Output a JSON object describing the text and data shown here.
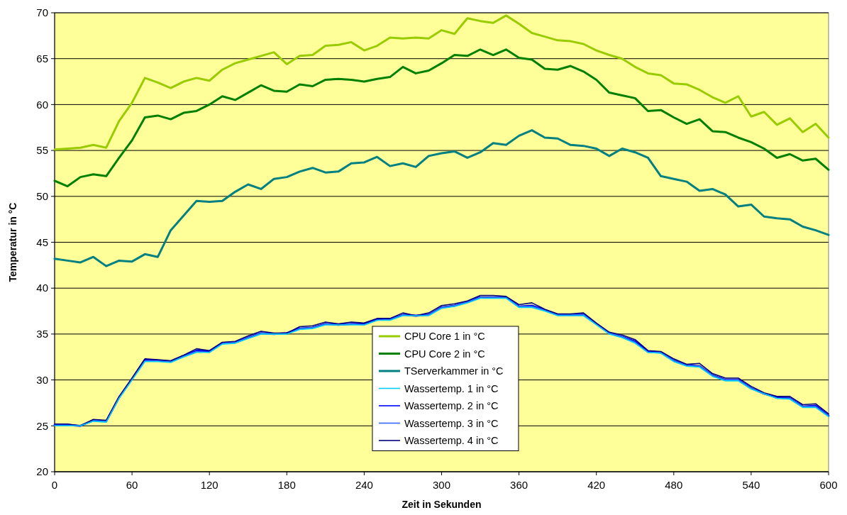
{
  "chart_data": {
    "type": "line",
    "xlabel": "Zeit in Sekunden",
    "ylabel": "Temperatur in °C",
    "x": [
      0,
      10,
      20,
      30,
      40,
      50,
      60,
      70,
      80,
      90,
      100,
      110,
      120,
      130,
      140,
      150,
      160,
      170,
      180,
      190,
      200,
      210,
      220,
      230,
      240,
      250,
      260,
      270,
      280,
      290,
      300,
      310,
      320,
      330,
      340,
      350,
      360,
      370,
      380,
      390,
      400,
      410,
      420,
      430,
      440,
      450,
      460,
      470,
      480,
      490,
      500,
      510,
      520,
      530,
      540,
      550,
      560,
      570,
      580,
      590,
      600
    ],
    "xlim": [
      0,
      600
    ],
    "xticks": [
      0,
      60,
      120,
      180,
      240,
      300,
      360,
      420,
      480,
      540,
      600
    ],
    "ylim": [
      20,
      70
    ],
    "yticks": [
      20,
      25,
      30,
      35,
      40,
      45,
      50,
      55,
      60,
      65,
      70
    ],
    "grid": "y",
    "legend": "bottom",
    "line_style": "solid",
    "marker": "none",
    "series": [
      {
        "name": "CPU Core 1 in °C",
        "color": "#99cc00",
        "values": [
          55.1,
          55.2,
          55.3,
          55.6,
          55.3,
          58.2,
          60.2,
          62.9,
          62.4,
          61.8,
          62.5,
          62.9,
          62.6,
          63.8,
          64.5,
          64.9,
          65.3,
          65.7,
          64.4,
          65.3,
          65.4,
          66.4,
          66.5,
          66.8,
          65.9,
          66.4,
          67.3,
          67.2,
          67.3,
          67.2,
          68.1,
          67.7,
          69.4,
          69.1,
          68.9,
          69.7,
          68.8,
          67.8,
          67.4,
          67.0,
          66.9,
          66.6,
          65.9,
          65.4,
          65.0,
          64.1,
          63.4,
          63.2,
          62.3,
          62.2,
          61.6,
          60.8,
          60.2,
          60.9,
          58.7,
          59.2,
          57.8,
          58.5,
          57.0,
          57.9,
          56.4
        ]
      },
      {
        "name": "CPU Core 2 in °C",
        "color": "#008000",
        "values": [
          51.7,
          51.1,
          52.1,
          52.4,
          52.2,
          54.2,
          56.1,
          58.6,
          58.8,
          58.4,
          59.1,
          59.3,
          60.0,
          60.9,
          60.5,
          61.3,
          62.1,
          61.5,
          61.4,
          62.2,
          62.0,
          62.7,
          62.8,
          62.7,
          62.5,
          62.8,
          63.0,
          64.1,
          63.4,
          63.7,
          64.5,
          65.4,
          65.3,
          66.0,
          65.4,
          66.0,
          65.1,
          64.9,
          63.9,
          63.8,
          64.2,
          63.6,
          62.7,
          61.3,
          61.0,
          60.7,
          59.3,
          59.4,
          58.6,
          57.9,
          58.4,
          57.1,
          57.0,
          56.4,
          55.9,
          55.2,
          54.2,
          54.6,
          53.9,
          54.1,
          52.9
        ]
      },
      {
        "name": "TServerkammer in °C",
        "color": "#008080",
        "values": [
          43.2,
          43.0,
          42.8,
          43.4,
          42.4,
          43.0,
          42.9,
          43.7,
          43.4,
          46.3,
          47.9,
          49.5,
          49.4,
          49.5,
          50.5,
          51.3,
          50.8,
          51.9,
          52.1,
          52.7,
          53.1,
          52.6,
          52.7,
          53.6,
          53.7,
          54.3,
          53.3,
          53.6,
          53.2,
          54.4,
          54.7,
          54.9,
          54.2,
          54.8,
          55.8,
          55.6,
          56.6,
          57.2,
          56.4,
          56.3,
          55.6,
          55.5,
          55.2,
          54.4,
          55.2,
          54.8,
          54.2,
          52.2,
          51.9,
          51.6,
          50.6,
          50.8,
          50.2,
          48.9,
          49.1,
          47.8,
          47.6,
          47.5,
          46.7,
          46.3,
          45.8
        ]
      },
      {
        "name": "Wassertemp. 1 in °C",
        "color": "#00ccff",
        "values": [
          25.0,
          25.0,
          25.0,
          25.5,
          25.4,
          28.0,
          30.0,
          32.0,
          32.0,
          31.9,
          32.5,
          33.0,
          33.0,
          33.9,
          34.0,
          34.5,
          35.0,
          35.0,
          35.0,
          35.5,
          35.6,
          36.0,
          36.0,
          36.0,
          36.0,
          36.5,
          36.5,
          37.0,
          37.0,
          37.0,
          37.8,
          38.0,
          38.4,
          38.9,
          38.9,
          38.9,
          37.9,
          37.9,
          37.5,
          37.0,
          37.0,
          37.0,
          36.0,
          35.0,
          34.6,
          34.0,
          33.0,
          32.9,
          32.0,
          31.5,
          31.4,
          30.4,
          29.9,
          29.9,
          29.0,
          28.5,
          28.0,
          27.9,
          27.0,
          27.0,
          26.0
        ]
      },
      {
        "name": "Wassertemp. 2 in °C",
        "color": "#0000ff",
        "values": [
          25.1,
          25.1,
          25.0,
          25.6,
          25.5,
          28.1,
          30.1,
          32.2,
          32.1,
          32.0,
          32.6,
          33.2,
          33.1,
          34.0,
          34.1,
          34.6,
          35.1,
          35.0,
          35.1,
          35.6,
          35.7,
          36.1,
          36.0,
          36.1,
          36.1,
          36.6,
          36.6,
          37.1,
          37.0,
          37.1,
          37.9,
          38.1,
          38.5,
          39.0,
          39.0,
          39.0,
          38.0,
          38.1,
          37.6,
          37.1,
          37.1,
          37.1,
          36.1,
          35.1,
          34.7,
          34.2,
          33.1,
          33.0,
          32.1,
          31.6,
          31.5,
          30.5,
          30.0,
          30.0,
          29.1,
          28.5,
          28.1,
          28.0,
          27.1,
          27.2,
          26.1
        ]
      },
      {
        "name": "Wassertemp. 3 in °C",
        "color": "#3366ff",
        "values": [
          25.1,
          25.1,
          25.0,
          25.6,
          25.5,
          28.1,
          30.1,
          32.1,
          32.1,
          32.0,
          32.6,
          33.1,
          33.0,
          34.0,
          34.1,
          34.6,
          35.1,
          35.0,
          35.0,
          35.6,
          35.7,
          36.1,
          36.0,
          36.1,
          36.0,
          36.5,
          36.6,
          37.1,
          37.0,
          37.1,
          37.9,
          38.1,
          38.5,
          39.0,
          39.0,
          39.0,
          38.0,
          38.0,
          37.6,
          37.1,
          37.1,
          37.1,
          36.1,
          35.1,
          34.7,
          34.1,
          33.0,
          33.0,
          32.1,
          31.6,
          31.5,
          30.5,
          30.0,
          30.0,
          29.1,
          28.5,
          28.0,
          28.0,
          27.1,
          27.1,
          26.1
        ]
      },
      {
        "name": "Wassertemp. 4 in °C",
        "color": "#000080",
        "values": [
          25.2,
          25.2,
          25.0,
          25.7,
          25.6,
          28.2,
          30.2,
          32.3,
          32.2,
          32.1,
          32.7,
          33.4,
          33.2,
          34.1,
          34.2,
          34.8,
          35.3,
          35.1,
          35.1,
          35.8,
          35.9,
          36.3,
          36.1,
          36.3,
          36.2,
          36.7,
          36.7,
          37.3,
          37.0,
          37.3,
          38.1,
          38.3,
          38.6,
          39.2,
          39.2,
          39.1,
          38.2,
          38.4,
          37.7,
          37.2,
          37.2,
          37.3,
          36.2,
          35.2,
          34.9,
          34.4,
          33.2,
          33.1,
          32.3,
          31.7,
          31.8,
          30.7,
          30.2,
          30.2,
          29.3,
          28.6,
          28.2,
          28.2,
          27.3,
          27.4,
          26.3
        ]
      }
    ]
  }
}
